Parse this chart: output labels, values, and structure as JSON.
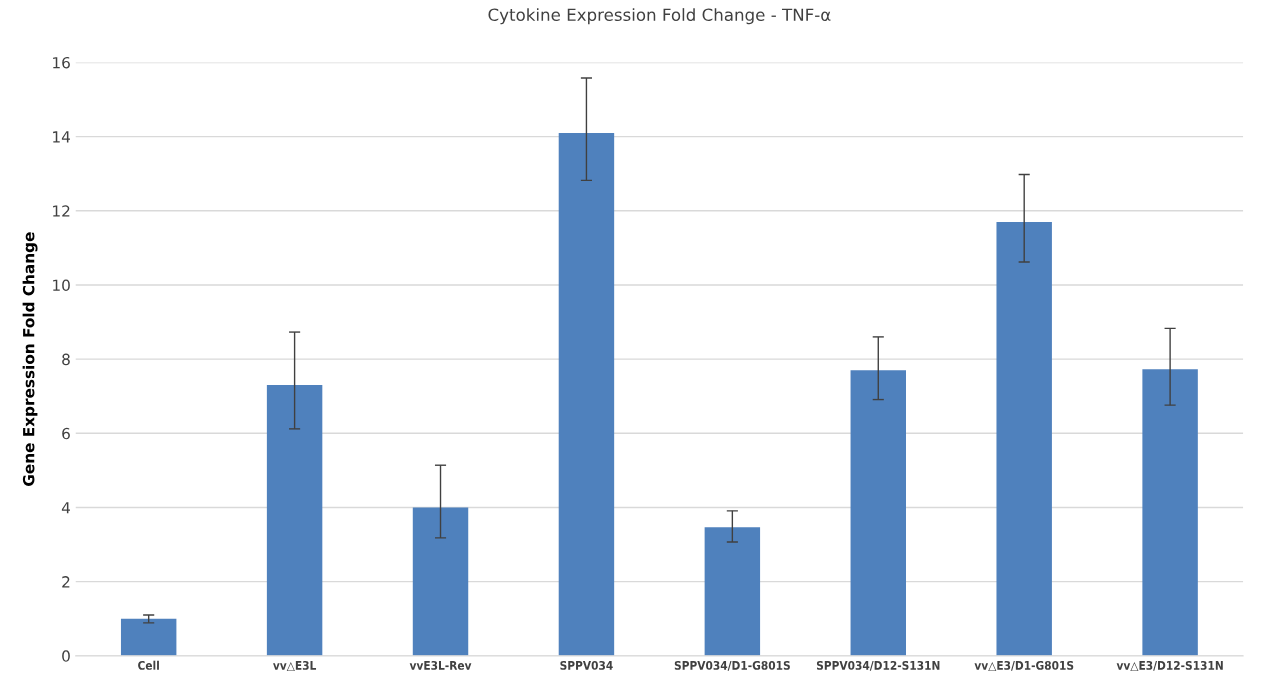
{
  "chart_data": {
    "type": "bar",
    "title": "Cytokine Expression Fold Change - TNF-α",
    "ylabel": "Gene Expression Fold Change",
    "categories": [
      "Cell",
      "vv△E3L",
      "vvE3L-Rev",
      "SPPV034",
      "SPPV034/D1-G801S",
      "SPPV034/D12-S131N",
      "vv△E3/D1-G801S",
      "vv△E3/D12-S131N"
    ],
    "values": [
      1.0,
      7.3,
      4.0,
      14.1,
      3.47,
      7.7,
      11.7,
      7.73
    ],
    "errors": [
      [
        0.89,
        1.1
      ],
      [
        6.12,
        8.73
      ],
      [
        3.18,
        5.14
      ],
      [
        12.82,
        15.58
      ],
      [
        3.07,
        3.91
      ],
      [
        6.91,
        8.6
      ],
      [
        10.62,
        12.98
      ],
      [
        6.76,
        8.83
      ]
    ],
    "color": "#4f81bd",
    "ylim": [
      0,
      16
    ],
    "yticks": [
      0,
      2,
      4,
      6,
      8,
      10,
      12,
      14,
      16
    ],
    "grid": "y"
  }
}
